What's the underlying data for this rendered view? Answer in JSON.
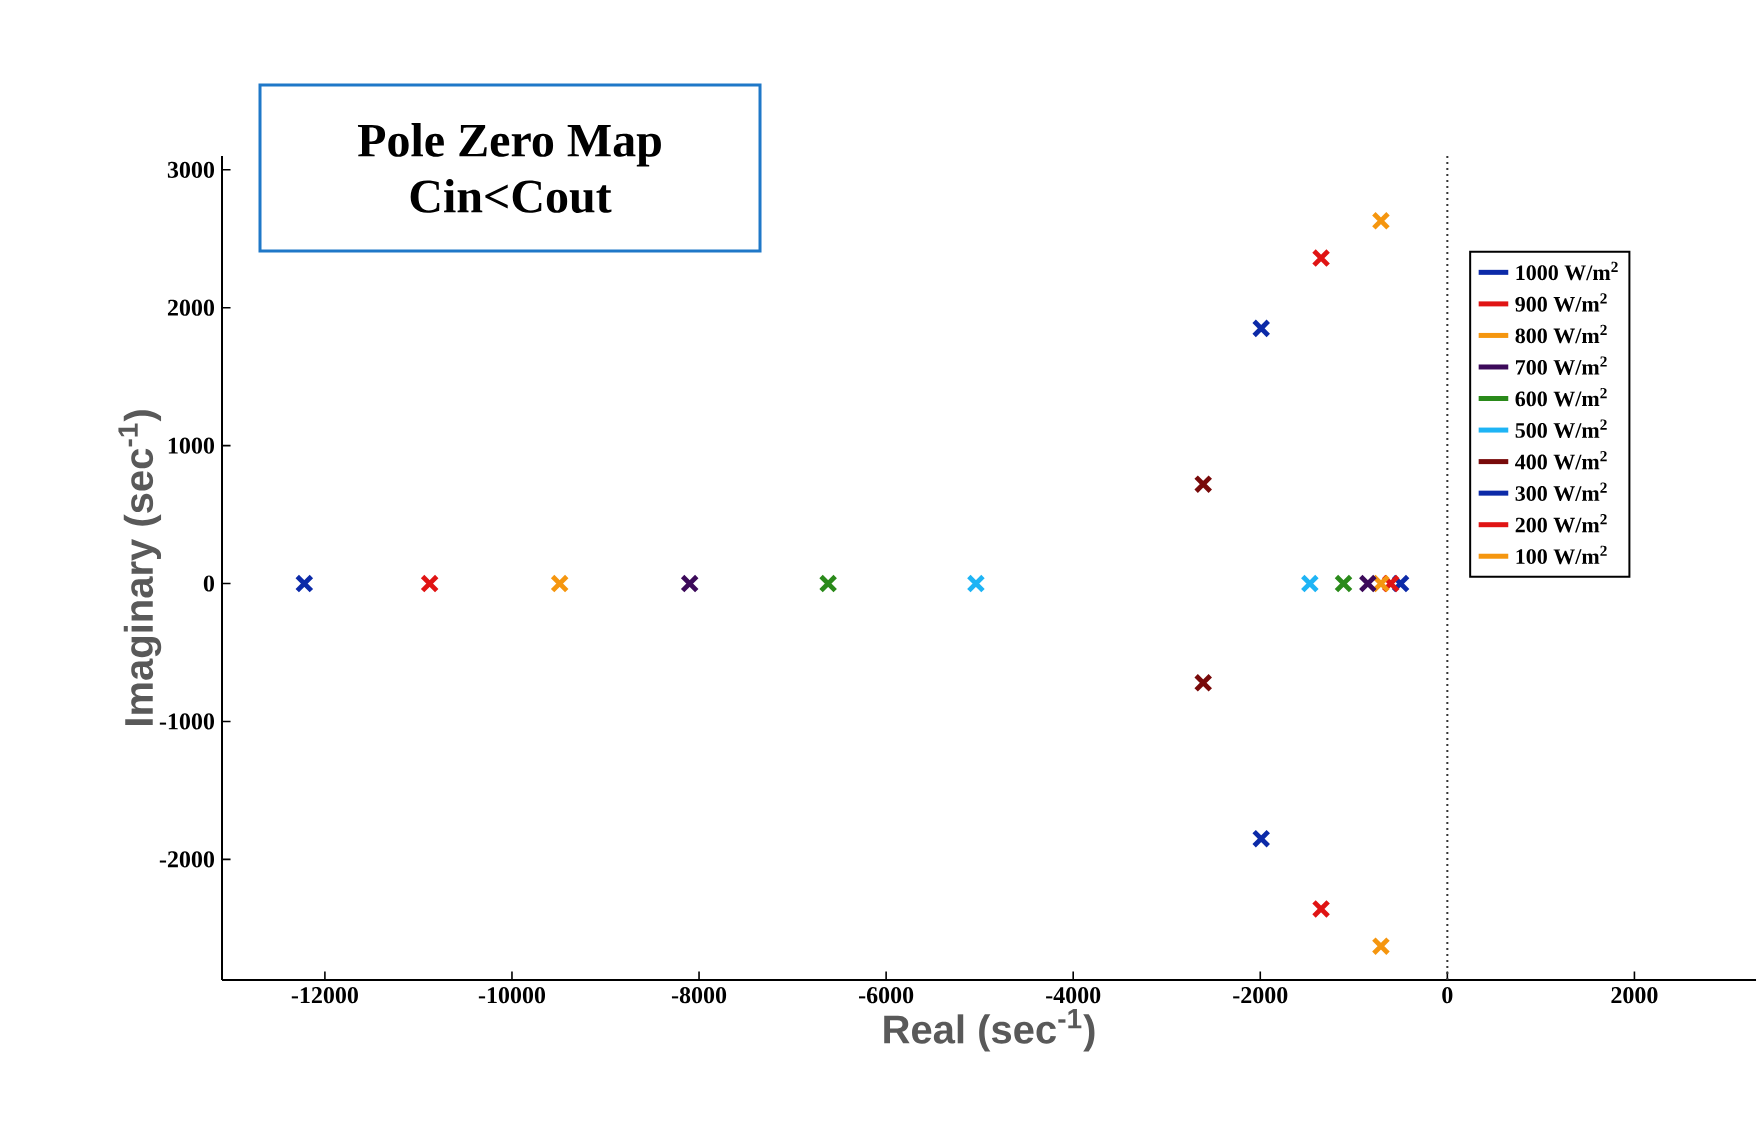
{
  "chart_data": {
    "type": "scatter",
    "title": "Pole Zero Map",
    "subtitle": "Cin<Cout",
    "xlabel": "Real (sec$^{-1}$)",
    "ylabel": "Imaginary (sec$^{-1}$)",
    "xlim": [
      -13100,
      3300
    ],
    "ylim": [
      -2875,
      3100
    ],
    "xticks": [
      -12000,
      -10000,
      -8000,
      -6000,
      -4000,
      -2000,
      0,
      2000
    ],
    "yticks": [
      -2000,
      -1000,
      0,
      1000,
      2000,
      3000
    ],
    "grid": false,
    "legend": "right",
    "marker": "cross",
    "ref_lines": [
      {
        "axis": "x",
        "value": 0,
        "line_style": "dotted",
        "color": "#333333"
      }
    ],
    "series": [
      {
        "name": "1000 W/m$^{2}$",
        "color": "#0c2aa8",
        "x": [
          -12220,
          -500
        ],
        "values": [
          0,
          0
        ]
      },
      {
        "name": "900 W/m$^{2}$",
        "color": "#e01414",
        "x": [
          -10880,
          -605
        ],
        "values": [
          0,
          0
        ]
      },
      {
        "name": "800 W/m$^{2}$",
        "color": "#f5960f",
        "x": [
          -9490,
          -710
        ],
        "values": [
          0,
          0
        ]
      },
      {
        "name": "700 W/m$^{2}$",
        "color": "#3c0a5a",
        "x": [
          -8100,
          -850
        ],
        "values": [
          0,
          0
        ]
      },
      {
        "name": "600 W/m$^{2}$",
        "color": "#2a8a1a",
        "x": [
          -6620,
          -1110
        ],
        "values": [
          0,
          0
        ]
      },
      {
        "name": "500 W/m$^{2}$",
        "color": "#1eb4f5",
        "x": [
          -5040,
          -1470
        ],
        "values": [
          0,
          0
        ]
      },
      {
        "name": "400 W/m$^{2}$",
        "color": "#780a0a",
        "x": [
          -2610,
          -2610
        ],
        "values": [
          720,
          -720
        ]
      },
      {
        "name": "300 W/m$^{2}$",
        "color": "#0c2aa8",
        "x": [
          -1990,
          -1990
        ],
        "values": [
          1850,
          -1850
        ]
      },
      {
        "name": "200 W/m$^{2}$",
        "color": "#e01414",
        "x": [
          -1350,
          -1350
        ],
        "values": [
          2360,
          -2360
        ]
      },
      {
        "name": "100 W/m$^{2}$",
        "color": "#f5960f",
        "x": [
          -710,
          -710
        ],
        "values": [
          2630,
          -2630
        ]
      }
    ]
  }
}
